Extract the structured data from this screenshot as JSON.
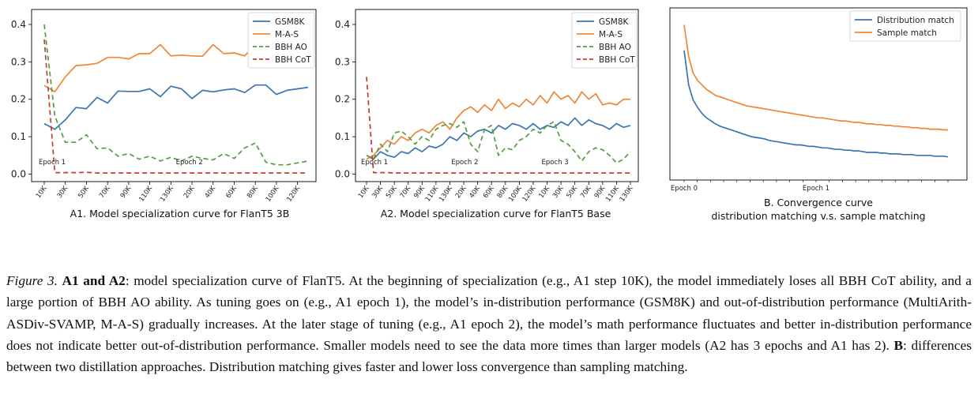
{
  "captions": {
    "a1": "A1. Model specialization curve for FlanT5 3B",
    "a2": "A2. Model specialization curve for FlanT5 Base",
    "b_line1": "B. Convergence curve",
    "b_line2": "distribution matching v.s. sample matching"
  },
  "figure_caption": {
    "label": "Figure 3.",
    "a_heading": "A1 and A2",
    "a_text": ": model specialization curve of FlanT5. At the beginning of specialization (e.g., A1 step 10K), the model immediately loses all BBH CoT ability, and a large portion of BBH AO ability. As tuning goes on (e.g., A1 epoch 1), the model’s in-distribution performance (GSM8K) and out-of-distribution performance (MultiArith-ASDiv-SVAMP, M-A-S) gradually increases. At the later stage of tuning (e.g., A1 epoch 2), the model’s math performance fluctuates and better in-distribution performance does not indicate better out-of-distribution performance. Smaller models need to see the data more times than larger models (A2 has 3 epochs and A1 has 2). ",
    "b_heading": "B",
    "b_text": ": differences between two distillation approaches. Distribution matching gives faster and lower loss convergence than sampling matching."
  },
  "colors": {
    "blue": "#3b75af",
    "orange": "#ef8636",
    "green": "#519e3e",
    "red": "#c53a32"
  },
  "chart_data": [
    {
      "type": "line",
      "title": "",
      "xlabel": "",
      "ylabel": "",
      "categories": [
        "10K",
        "20K",
        "30K",
        "40K",
        "50K",
        "60K",
        "70K",
        "80K",
        "90K",
        "100K",
        "110K",
        "120K",
        "130K",
        "10K",
        "20K",
        "30K",
        "40K",
        "50K",
        "60K",
        "70K",
        "80K",
        "90K",
        "100K",
        "110K",
        "120K",
        "130K"
      ],
      "xtick_labels": [
        "10K",
        "30K",
        "50K",
        "70K",
        "90K",
        "110K",
        "130K",
        "20K",
        "40K",
        "60K",
        "80K",
        "100K",
        "120K"
      ],
      "yticks": [
        0.0,
        0.1,
        0.2,
        0.3,
        0.4
      ],
      "ylim": [
        -0.02,
        0.44
      ],
      "annotations": [
        {
          "text": "Epoch 1",
          "x_index": 0
        },
        {
          "text": "Epoch 2",
          "x_index": 13
        }
      ],
      "legend": "top-right",
      "grid": false,
      "series": [
        {
          "name": "GSM8K",
          "color": "#3b75af",
          "style": "solid",
          "values": [
            0.135,
            0.12,
            0.145,
            0.178,
            0.175,
            0.205,
            0.19,
            0.222,
            0.221,
            0.221,
            0.228,
            0.207,
            0.235,
            0.228,
            0.202,
            0.224,
            0.22,
            0.225,
            0.228,
            0.218,
            0.238,
            0.238,
            0.213,
            0.224,
            0.228,
            0.232
          ]
        },
        {
          "name": "M-A-S",
          "color": "#ef8636",
          "style": "solid",
          "values": [
            0.237,
            0.22,
            0.26,
            0.29,
            0.292,
            0.296,
            0.312,
            0.312,
            0.308,
            0.322,
            0.322,
            0.346,
            0.316,
            0.318,
            0.316,
            0.315,
            0.346,
            0.322,
            0.324,
            0.316,
            0.348,
            0.35,
            0.35,
            0.35,
            0.35,
            0.35
          ]
        },
        {
          "name": "BBH AO",
          "color": "#519e3e",
          "style": "dashed",
          "values": [
            0.4,
            0.155,
            0.085,
            0.085,
            0.105,
            0.068,
            0.07,
            0.048,
            0.055,
            0.04,
            0.048,
            0.035,
            0.045,
            0.035,
            0.048,
            0.042,
            0.038,
            0.055,
            0.042,
            0.07,
            0.083,
            0.032,
            0.025,
            0.025,
            0.03,
            0.035
          ]
        },
        {
          "name": "BBH CoT",
          "color": "#c53a32",
          "style": "dashed",
          "values": [
            0.36,
            0.004,
            0.004,
            0.004,
            0.005,
            0.003,
            0.003,
            0.003,
            0.003,
            0.003,
            0.003,
            0.003,
            0.003,
            0.003,
            0.003,
            0.003,
            0.003,
            0.003,
            0.003,
            0.003,
            0.003,
            0.003,
            0.003,
            0.003,
            0.003,
            0.003
          ]
        }
      ]
    },
    {
      "type": "line",
      "title": "",
      "xlabel": "",
      "ylabel": "",
      "categories": [
        "10K",
        "20K",
        "30K",
        "40K",
        "50K",
        "60K",
        "70K",
        "80K",
        "90K",
        "100K",
        "110K",
        "120K",
        "130K",
        "10K",
        "20K",
        "30K",
        "40K",
        "50K",
        "60K",
        "70K",
        "80K",
        "90K",
        "100K",
        "110K",
        "120K",
        "130K",
        "10K",
        "20K",
        "30K",
        "40K",
        "50K",
        "60K",
        "70K",
        "80K",
        "90K",
        "100K",
        "110K",
        "120K",
        "130K"
      ],
      "xtick_labels": [
        "10K",
        "30K",
        "50K",
        "70K",
        "90K",
        "110K",
        "130K",
        "20K",
        "40K",
        "60K",
        "80K",
        "100K",
        "120K",
        "10K",
        "30K",
        "50K",
        "70K",
        "90K",
        "110K",
        "130K"
      ],
      "yticks": [
        0.0,
        0.1,
        0.2,
        0.3,
        0.4
      ],
      "ylim": [
        -0.02,
        0.44
      ],
      "annotations": [
        {
          "text": "Epoch 1",
          "x_index": 0
        },
        {
          "text": "Epoch 2",
          "x_index": 13
        },
        {
          "text": "Epoch 3",
          "x_index": 26
        }
      ],
      "legend": "top-right",
      "grid": false,
      "series": [
        {
          "name": "GSM8K",
          "color": "#3b75af",
          "style": "solid",
          "values": [
            0.05,
            0.04,
            0.06,
            0.05,
            0.045,
            0.06,
            0.055,
            0.07,
            0.06,
            0.075,
            0.07,
            0.08,
            0.1,
            0.09,
            0.11,
            0.1,
            0.115,
            0.12,
            0.11,
            0.13,
            0.12,
            0.135,
            0.13,
            0.12,
            0.135,
            0.12,
            0.13,
            0.125,
            0.14,
            0.13,
            0.15,
            0.13,
            0.145,
            0.135,
            0.13,
            0.12,
            0.135,
            0.125,
            0.13
          ]
        },
        {
          "name": "M-A-S",
          "color": "#ef8636",
          "style": "solid",
          "values": [
            0.04,
            0.05,
            0.07,
            0.09,
            0.08,
            0.1,
            0.09,
            0.11,
            0.12,
            0.11,
            0.13,
            0.14,
            0.12,
            0.15,
            0.17,
            0.18,
            0.165,
            0.185,
            0.17,
            0.2,
            0.175,
            0.19,
            0.18,
            0.2,
            0.185,
            0.21,
            0.19,
            0.22,
            0.2,
            0.21,
            0.19,
            0.22,
            0.2,
            0.215,
            0.185,
            0.19,
            0.185,
            0.2,
            0.2
          ]
        },
        {
          "name": "BBH AO",
          "color": "#519e3e",
          "style": "dashed",
          "values": [
            0.05,
            0.04,
            0.08,
            0.06,
            0.11,
            0.115,
            0.1,
            0.08,
            0.1,
            0.09,
            0.12,
            0.13,
            0.135,
            0.125,
            0.14,
            0.08,
            0.06,
            0.12,
            0.13,
            0.05,
            0.07,
            0.065,
            0.09,
            0.1,
            0.12,
            0.11,
            0.13,
            0.14,
            0.09,
            0.08,
            0.06,
            0.035,
            0.06,
            0.07,
            0.065,
            0.05,
            0.03,
            0.04,
            0.06
          ]
        },
        {
          "name": "BBH CoT",
          "color": "#c53a32",
          "style": "dashed",
          "values": [
            0.26,
            0.004,
            0.004,
            0.004,
            0.003,
            0.003,
            0.003,
            0.003,
            0.003,
            0.003,
            0.003,
            0.003,
            0.003,
            0.003,
            0.003,
            0.003,
            0.003,
            0.003,
            0.003,
            0.003,
            0.003,
            0.003,
            0.003,
            0.003,
            0.003,
            0.003,
            0.003,
            0.003,
            0.003,
            0.003,
            0.003,
            0.003,
            0.003,
            0.003,
            0.003,
            0.003,
            0.003,
            0.003,
            0.003
          ]
        }
      ]
    },
    {
      "type": "line",
      "title": "",
      "xlabel": "",
      "ylabel": "",
      "xtick_labels": [
        "Epoch 0",
        "Epoch 1"
      ],
      "yticks": [],
      "legend": "top-right",
      "grid": false,
      "series": [
        {
          "name": "Distribution match",
          "color": "#3b75af",
          "style": "solid",
          "values": [
            0.78,
            0.55,
            0.45,
            0.4,
            0.36,
            0.33,
            0.31,
            0.29,
            0.275,
            0.265,
            0.255,
            0.245,
            0.235,
            0.225,
            0.215,
            0.205,
            0.2,
            0.195,
            0.19,
            0.18,
            0.175,
            0.17,
            0.165,
            0.16,
            0.155,
            0.15,
            0.15,
            0.145,
            0.14,
            0.14,
            0.135,
            0.13,
            0.13,
            0.125,
            0.12,
            0.12,
            0.115,
            0.115,
            0.11,
            0.11,
            0.105,
            0.1,
            0.1,
            0.1,
            0.095,
            0.095,
            0.09,
            0.09,
            0.09,
            0.085,
            0.085,
            0.085,
            0.08,
            0.08,
            0.08,
            0.08,
            0.075,
            0.075,
            0.075,
            0.07
          ]
        },
        {
          "name": "Sample match",
          "color": "#ef8636",
          "style": "solid",
          "values": [
            0.95,
            0.74,
            0.63,
            0.58,
            0.55,
            0.52,
            0.5,
            0.48,
            0.47,
            0.46,
            0.45,
            0.44,
            0.43,
            0.42,
            0.41,
            0.405,
            0.4,
            0.395,
            0.39,
            0.385,
            0.38,
            0.375,
            0.37,
            0.365,
            0.36,
            0.355,
            0.35,
            0.345,
            0.34,
            0.335,
            0.33,
            0.33,
            0.325,
            0.32,
            0.315,
            0.31,
            0.31,
            0.305,
            0.3,
            0.3,
            0.295,
            0.29,
            0.29,
            0.285,
            0.285,
            0.28,
            0.28,
            0.275,
            0.275,
            0.27,
            0.27,
            0.265,
            0.265,
            0.26,
            0.26,
            0.255,
            0.255,
            0.255,
            0.25,
            0.25
          ]
        }
      ]
    }
  ]
}
